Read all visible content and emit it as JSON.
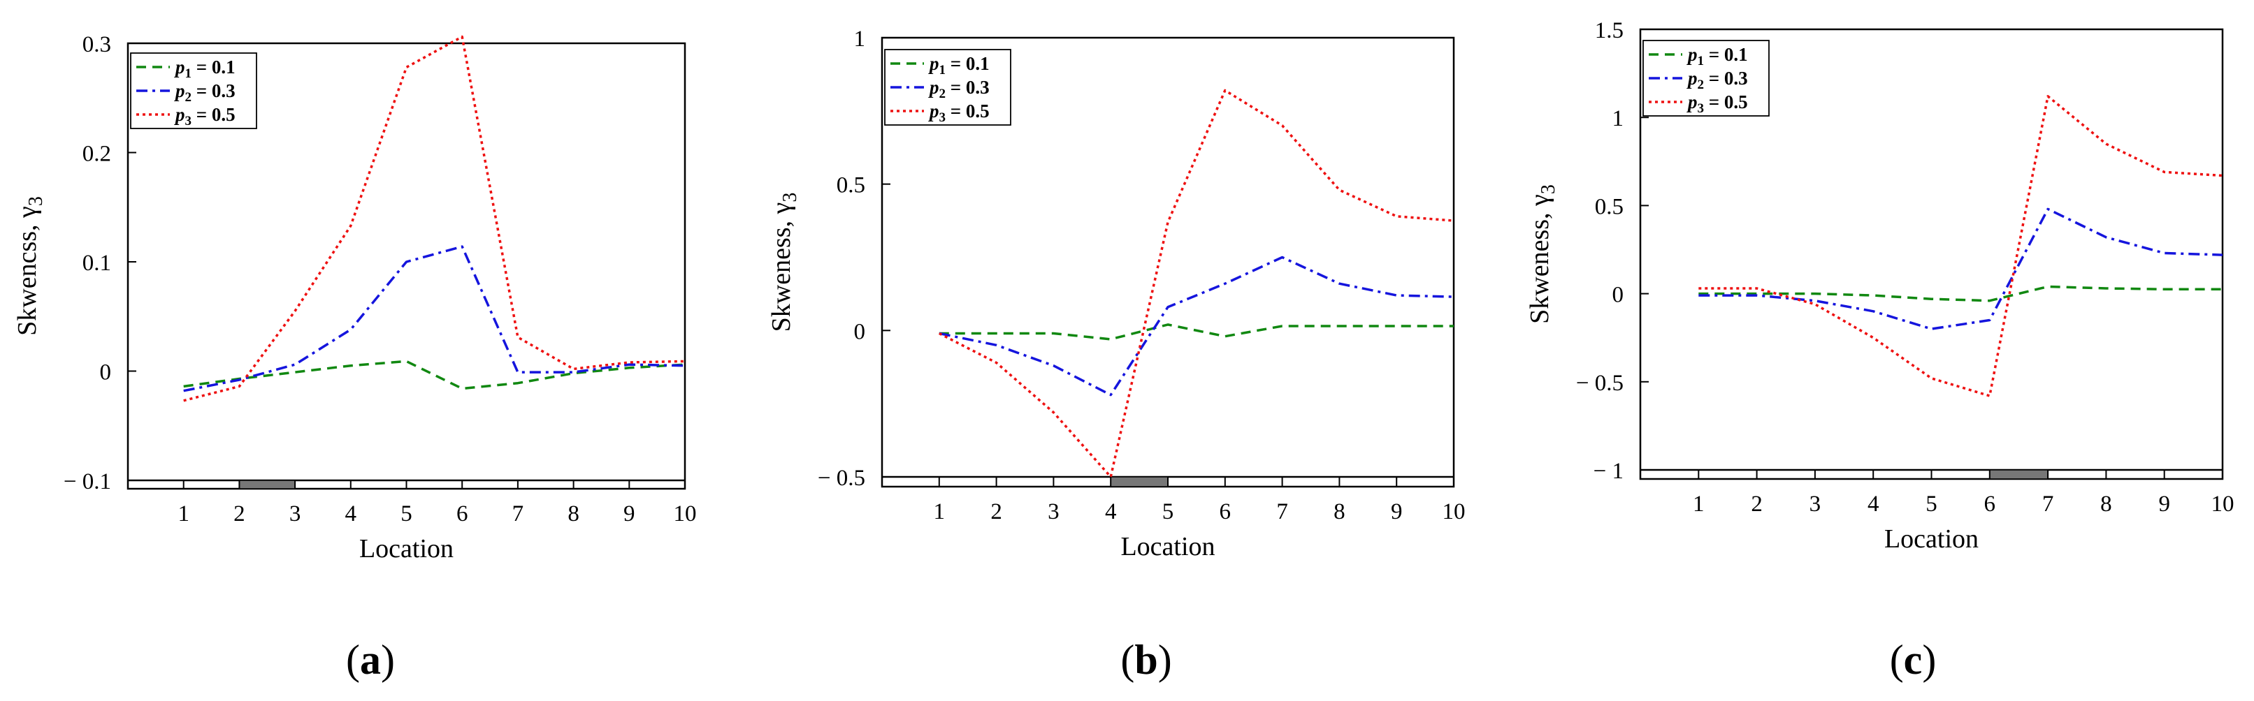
{
  "chart_data": [
    {
      "type": "line",
      "panel_label": "a",
      "xlabel": "Location",
      "ylabel": "Skwencss, γ3",
      "ylim": [
        -0.1,
        0.3
      ],
      "yticks": [
        -0.1,
        0,
        0.1,
        0.2,
        0.3
      ],
      "ytick_labels": [
        "− 0.1",
        "0",
        "0.1",
        "0.2",
        "0.3"
      ],
      "x": [
        1,
        2,
        3,
        4,
        5,
        6,
        7,
        8,
        9,
        10
      ],
      "xlim": [
        0,
        10
      ],
      "xtick_labels": [
        "1",
        "2",
        "3",
        "4",
        "5",
        "6",
        "7",
        "8",
        "9",
        "10"
      ],
      "highlight_interval": [
        2,
        3
      ],
      "legend_position": "top-left",
      "series": [
        {
          "name": "p1 = 0.1",
          "sub": "1",
          "value": "0.1",
          "color": "#118811",
          "style": "dashed",
          "values": [
            -0.014,
            -0.007,
            -0.001,
            0.005,
            0.009,
            -0.016,
            -0.011,
            -0.002,
            0.003,
            0.006
          ]
        },
        {
          "name": "p2 = 0.3",
          "sub": "2",
          "value": "0.3",
          "color": "#1515dd",
          "style": "dashdot",
          "values": [
            -0.018,
            -0.008,
            0.006,
            0.038,
            0.1,
            0.114,
            -0.001,
            -0.001,
            0.006,
            0.005
          ]
        },
        {
          "name": "p3 = 0.5",
          "sub": "3",
          "value": "0.5",
          "color": "#ee1111",
          "style": "dotted",
          "values": [
            -0.027,
            -0.014,
            0.055,
            0.133,
            0.278,
            0.306,
            0.031,
            0.002,
            0.008,
            0.009
          ]
        }
      ]
    },
    {
      "type": "line",
      "panel_label": "b",
      "xlabel": "Location",
      "ylabel": "Skweness, γ3",
      "ylim": [
        -0.5,
        1
      ],
      "yticks": [
        -0.5,
        0,
        0.5,
        1
      ],
      "ytick_labels": [
        "− 0.5",
        "0",
        "0.5",
        "1"
      ],
      "x": [
        1,
        2,
        3,
        4,
        5,
        6,
        7,
        8,
        9,
        10
      ],
      "xlim": [
        0,
        10
      ],
      "xtick_labels": [
        "1",
        "2",
        "3",
        "4",
        "5",
        "6",
        "7",
        "8",
        "9",
        "10"
      ],
      "highlight_interval": [
        4,
        5
      ],
      "legend_position": "top-left",
      "series": [
        {
          "name": "p1 = 0.1",
          "sub": "1",
          "value": "0.1",
          "color": "#118811",
          "style": "dashed",
          "values": [
            -0.01,
            -0.01,
            -0.01,
            -0.03,
            0.02,
            -0.02,
            0.015,
            0.015,
            0.015,
            0.015
          ]
        },
        {
          "name": "p2 = 0.3",
          "sub": "2",
          "value": "0.3",
          "color": "#1515dd",
          "style": "dashdot",
          "values": [
            -0.01,
            -0.05,
            -0.12,
            -0.22,
            0.08,
            0.16,
            0.25,
            0.16,
            0.12,
            0.115
          ]
        },
        {
          "name": "p3 = 0.5",
          "sub": "3",
          "value": "0.5",
          "color": "#ee1111",
          "style": "dotted",
          "values": [
            -0.01,
            -0.11,
            -0.28,
            -0.5,
            0.37,
            0.82,
            0.7,
            0.48,
            0.39,
            0.375
          ]
        }
      ]
    },
    {
      "type": "line",
      "panel_label": "c",
      "xlabel": "Location",
      "ylabel": "Skweness, γ3",
      "ylim": [
        -1,
        1.5
      ],
      "yticks": [
        -1,
        -0.5,
        0,
        0.5,
        1,
        1.5
      ],
      "ytick_labels": [
        "− 1",
        "− 0.5",
        "0",
        "0.5",
        "1",
        "1.5"
      ],
      "x": [
        1,
        2,
        3,
        4,
        5,
        6,
        7,
        8,
        9,
        10
      ],
      "xlim": [
        0,
        10
      ],
      "xtick_labels": [
        "1",
        "2",
        "3",
        "4",
        "5",
        "6",
        "7",
        "8",
        "9",
        "10"
      ],
      "highlight_interval": [
        6,
        7
      ],
      "legend_position": "top-left",
      "series": [
        {
          "name": "p1 = 0.1",
          "sub": "1",
          "value": "0.1",
          "color": "#118811",
          "style": "dashed",
          "values": [
            0.0,
            0.0,
            0.0,
            -0.01,
            -0.03,
            -0.04,
            0.04,
            0.03,
            0.025,
            0.025
          ]
        },
        {
          "name": "p2 = 0.3",
          "sub": "2",
          "value": "0.3",
          "color": "#1515dd",
          "style": "dashdot",
          "values": [
            -0.01,
            -0.01,
            -0.04,
            -0.1,
            -0.2,
            -0.15,
            0.48,
            0.32,
            0.23,
            0.22
          ]
        },
        {
          "name": "p3 = 0.5",
          "sub": "3",
          "value": "0.5",
          "color": "#ee1111",
          "style": "dotted",
          "values": [
            0.03,
            0.03,
            -0.06,
            -0.25,
            -0.48,
            -0.58,
            1.12,
            0.85,
            0.69,
            0.67
          ]
        }
      ]
    }
  ]
}
